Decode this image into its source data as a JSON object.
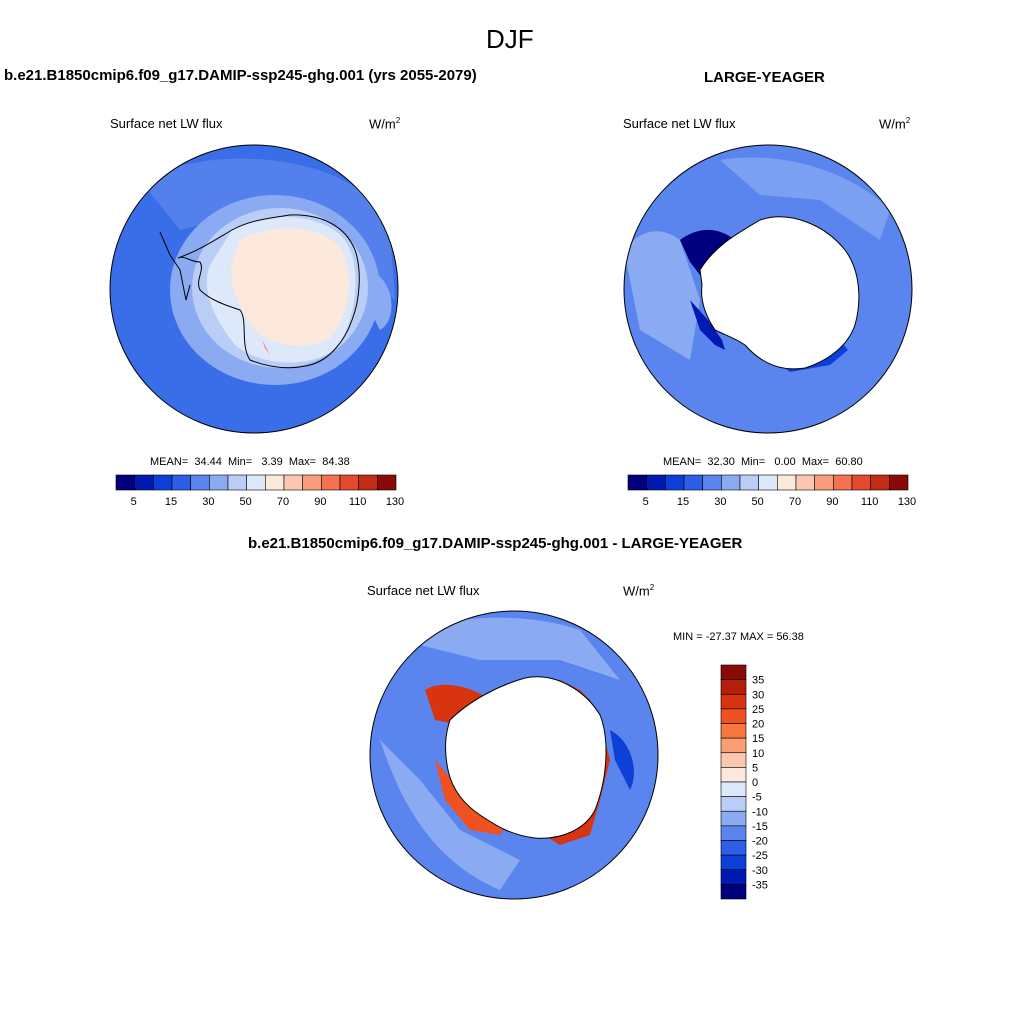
{
  "page_title": "DJF",
  "panels": [
    {
      "title": "b.e21.B1850cmip6.f09_g17.DAMIP-ssp245-ghg.001 (yrs 2055-2079)",
      "variable": "Surface net LW flux",
      "units_base": "W/m",
      "units_exp": "2",
      "stats": {
        "mean_label": "MEAN=",
        "mean": "34.44",
        "min_label": "Min=",
        "min": "3.39",
        "max_label": "Max=",
        "max": "84.38"
      },
      "colorbar_ticks": [
        "5",
        "15",
        "30",
        "50",
        "70",
        "90",
        "110",
        "130"
      ]
    },
    {
      "title": "LARGE-YEAGER",
      "variable": "Surface net LW flux",
      "units_base": "W/m",
      "units_exp": "2",
      "stats": {
        "mean_label": "MEAN=",
        "mean": "32.30",
        "min_label": "Min=",
        "min": "0.00",
        "max_label": "Max=",
        "max": "60.80"
      },
      "colorbar_ticks": [
        "5",
        "15",
        "30",
        "50",
        "70",
        "90",
        "110",
        "130"
      ]
    },
    {
      "title": "b.e21.B1850cmip6.f09_g17.DAMIP-ssp245-ghg.001 - LARGE-YEAGER",
      "variable": "Surface net LW flux",
      "units_base": "W/m",
      "units_exp": "2",
      "minmax": "MIN = -27.37 MAX =  56.38",
      "colorbar_ticks": [
        "35",
        "30",
        "25",
        "20",
        "15",
        "10",
        "5",
        "0",
        "-5",
        "-10",
        "-15",
        "-20",
        "-25",
        "-30",
        "-35"
      ]
    }
  ],
  "colors": {
    "abs_scale": [
      "#00007f",
      "#0019b3",
      "#0d3fd9",
      "#2d5ee8",
      "#5a85ee",
      "#8aabf2",
      "#b9cdf6",
      "#dde8fb",
      "#fde8dc",
      "#fbc7ae",
      "#f89e7c",
      "#f37350",
      "#e64a2e",
      "#c42a14",
      "#8a0b05"
    ],
    "diff_scale": [
      "#8a0b05",
      "#b41f0a",
      "#d83410",
      "#ef5120",
      "#f7773f",
      "#fa9e75",
      "#fbc7ae",
      "#fde8dc",
      "#dde8fb",
      "#b9cdf6",
      "#8aabf2",
      "#5a85ee",
      "#2d5ee8",
      "#0d3fd9",
      "#0019b3",
      "#00007f"
    ]
  }
}
